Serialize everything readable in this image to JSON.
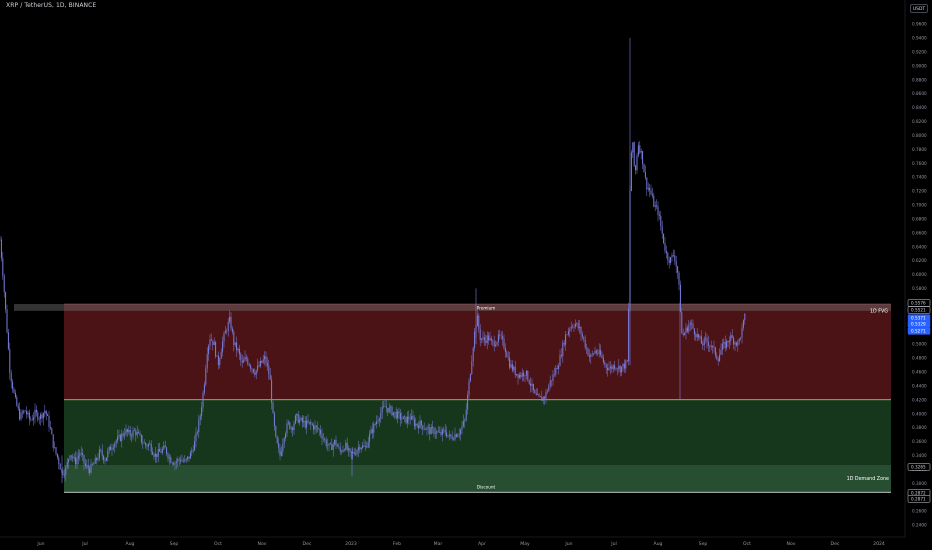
{
  "header": {
    "symbol": "XRP / TetherUS, 1D, BINANCE",
    "currency": "USDT"
  },
  "chart_data": {
    "type": "candlestick",
    "ylim": [
      0.23,
      1.0
    ],
    "y_ticks": [
      "0.9600",
      "0.9400",
      "0.9200",
      "0.9000",
      "0.8800",
      "0.8600",
      "0.8400",
      "0.8200",
      "0.8000",
      "0.7800",
      "0.7600",
      "0.7400",
      "0.7200",
      "0.7000",
      "0.6800",
      "0.6600",
      "0.6400",
      "0.6200",
      "0.6000",
      "0.5800",
      "0.5600",
      "0.5400",
      "0.5200",
      "0.5000",
      "0.4800",
      "0.4600",
      "0.4400",
      "0.4200",
      "0.4000",
      "0.3800",
      "0.3600",
      "0.3400",
      "0.3200",
      "0.3000",
      "0.2800",
      "0.2600",
      "0.2400"
    ],
    "x_ticks": [
      "Jun",
      "Jul",
      "Aug",
      "Sep",
      "Oct",
      "Nov",
      "Dec",
      "2023",
      "Feb",
      "Mar",
      "Apr",
      "May",
      "Jun",
      "Jul",
      "Aug",
      "Sep",
      "Oct",
      "Nov",
      "Dec",
      "2024"
    ],
    "price_tags": [
      {
        "value": 0.5576,
        "text": "0.5576",
        "kind": "outline"
      },
      {
        "value": 0.5521,
        "text": "0.5521",
        "kind": "outline"
      },
      {
        "value": 0.5371,
        "text": "0.5371",
        "kind": "current"
      },
      {
        "value": 0.5329,
        "text": "0.5329",
        "kind": "current"
      },
      {
        "value": 0.5271,
        "text": "0.5271",
        "kind": "current"
      },
      {
        "value": 0.3265,
        "text": "0.3265",
        "kind": "outline"
      },
      {
        "value": 0.2872,
        "text": "0.2872",
        "kind": "outline"
      },
      {
        "value": 0.2871,
        "text": "0.2871",
        "kind": "outline"
      }
    ],
    "zones": [
      {
        "label": "1D FVG",
        "low": 0.5521,
        "high": 0.5576,
        "color": "#707070"
      },
      {
        "label": "",
        "low": 0.42,
        "high": 0.5576,
        "color": "#7a1f24"
      },
      {
        "label": "",
        "low": 0.3265,
        "high": 0.42,
        "color": "#1e4a26"
      },
      {
        "label": "1D Demand Zone",
        "low": 0.2871,
        "high": 0.3265,
        "color": "#2e5c38"
      }
    ],
    "annotations": [
      "Premium",
      "Discount",
      "1D FVG",
      "1D Demand Zone"
    ],
    "series": [
      {
        "style": "candles",
        "color": "#7b7fe0",
        "path": [
          [
            0,
            0.65
          ],
          [
            3,
            0.6
          ],
          [
            6,
            0.54
          ],
          [
            10,
            0.46
          ],
          [
            15,
            0.42
          ],
          [
            20,
            0.395
          ],
          [
            25,
            0.405
          ],
          [
            30,
            0.39
          ],
          [
            35,
            0.4
          ],
          [
            40,
            0.395
          ],
          [
            45,
            0.405
          ],
          [
            50,
            0.38
          ],
          [
            54,
            0.35
          ],
          [
            58,
            0.335
          ],
          [
            62,
            0.315
          ],
          [
            66,
            0.32
          ],
          [
            70,
            0.345
          ],
          [
            75,
            0.33
          ],
          [
            80,
            0.345
          ],
          [
            85,
            0.325
          ],
          [
            90,
            0.32
          ],
          [
            95,
            0.33
          ],
          [
            100,
            0.345
          ],
          [
            105,
            0.335
          ],
          [
            110,
            0.35
          ],
          [
            115,
            0.36
          ],
          [
            120,
            0.365
          ],
          [
            125,
            0.375
          ],
          [
            130,
            0.37
          ],
          [
            135,
            0.375
          ],
          [
            140,
            0.365
          ],
          [
            145,
            0.355
          ],
          [
            150,
            0.355
          ],
          [
            155,
            0.34
          ],
          [
            160,
            0.345
          ],
          [
            165,
            0.35
          ],
          [
            170,
            0.335
          ],
          [
            175,
            0.33
          ],
          [
            180,
            0.335
          ],
          [
            185,
            0.33
          ],
          [
            190,
            0.34
          ],
          [
            195,
            0.36
          ],
          [
            200,
            0.395
          ],
          [
            204,
            0.44
          ],
          [
            207,
            0.49
          ],
          [
            210,
            0.51
          ],
          [
            214,
            0.5
          ],
          [
            218,
            0.47
          ],
          [
            222,
            0.5
          ],
          [
            226,
            0.52
          ],
          [
            230,
            0.535
          ],
          [
            234,
            0.5
          ],
          [
            238,
            0.49
          ],
          [
            242,
            0.47
          ],
          [
            246,
            0.48
          ],
          [
            250,
            0.47
          ],
          [
            255,
            0.46
          ],
          [
            260,
            0.47
          ],
          [
            265,
            0.48
          ],
          [
            270,
            0.45
          ],
          [
            273,
            0.395
          ],
          [
            276,
            0.36
          ],
          [
            280,
            0.34
          ],
          [
            284,
            0.37
          ],
          [
            288,
            0.385
          ],
          [
            292,
            0.38
          ],
          [
            296,
            0.395
          ],
          [
            300,
            0.39
          ],
          [
            305,
            0.385
          ],
          [
            310,
            0.385
          ],
          [
            315,
            0.38
          ],
          [
            320,
            0.375
          ],
          [
            325,
            0.36
          ],
          [
            330,
            0.35
          ],
          [
            335,
            0.36
          ],
          [
            340,
            0.345
          ],
          [
            345,
            0.355
          ],
          [
            350,
            0.34
          ],
          [
            355,
            0.345
          ],
          [
            360,
            0.355
          ],
          [
            365,
            0.35
          ],
          [
            370,
            0.37
          ],
          [
            375,
            0.385
          ],
          [
            380,
            0.4
          ],
          [
            385,
            0.41
          ],
          [
            390,
            0.405
          ],
          [
            395,
            0.4
          ],
          [
            400,
            0.395
          ],
          [
            405,
            0.39
          ],
          [
            410,
            0.395
          ],
          [
            415,
            0.385
          ],
          [
            420,
            0.385
          ],
          [
            425,
            0.38
          ],
          [
            430,
            0.375
          ],
          [
            435,
            0.375
          ],
          [
            440,
            0.37
          ],
          [
            445,
            0.375
          ],
          [
            450,
            0.365
          ],
          [
            455,
            0.37
          ],
          [
            460,
            0.375
          ],
          [
            465,
            0.39
          ],
          [
            468,
            0.43
          ],
          [
            471,
            0.47
          ],
          [
            474,
            0.51
          ],
          [
            477,
            0.54
          ],
          [
            480,
            0.51
          ],
          [
            484,
            0.505
          ],
          [
            488,
            0.51
          ],
          [
            492,
            0.5
          ],
          [
            496,
            0.505
          ],
          [
            500,
            0.51
          ],
          [
            505,
            0.495
          ],
          [
            510,
            0.47
          ],
          [
            515,
            0.46
          ],
          [
            520,
            0.455
          ],
          [
            525,
            0.46
          ],
          [
            530,
            0.445
          ],
          [
            535,
            0.425
          ],
          [
            540,
            0.42
          ],
          [
            545,
            0.425
          ],
          [
            550,
            0.445
          ],
          [
            555,
            0.46
          ],
          [
            560,
            0.48
          ],
          [
            565,
            0.51
          ],
          [
            570,
            0.525
          ],
          [
            575,
            0.53
          ],
          [
            580,
            0.52
          ],
          [
            585,
            0.5
          ],
          [
            590,
            0.48
          ],
          [
            595,
            0.49
          ],
          [
            600,
            0.485
          ],
          [
            605,
            0.47
          ],
          [
            610,
            0.465
          ],
          [
            615,
            0.47
          ],
          [
            620,
            0.465
          ],
          [
            625,
            0.47
          ],
          [
            628,
            0.475
          ],
          [
            630,
            0.72
          ],
          [
            632,
            0.8
          ],
          [
            635,
            0.74
          ],
          [
            638,
            0.79
          ],
          [
            642,
            0.77
          ],
          [
            646,
            0.73
          ],
          [
            650,
            0.72
          ],
          [
            654,
            0.7
          ],
          [
            658,
            0.69
          ],
          [
            662,
            0.66
          ],
          [
            666,
            0.63
          ],
          [
            670,
            0.62
          ],
          [
            674,
            0.63
          ],
          [
            678,
            0.6
          ],
          [
            680,
            0.56
          ],
          [
            682,
            0.51
          ],
          [
            686,
            0.52
          ],
          [
            690,
            0.53
          ],
          [
            694,
            0.52
          ],
          [
            698,
            0.51
          ],
          [
            702,
            0.5
          ],
          [
            706,
            0.505
          ],
          [
            710,
            0.5
          ],
          [
            714,
            0.49
          ],
          [
            718,
            0.48
          ],
          [
            722,
            0.495
          ],
          [
            726,
            0.5
          ],
          [
            730,
            0.51
          ],
          [
            734,
            0.505
          ],
          [
            738,
            0.5
          ],
          [
            742,
            0.52
          ],
          [
            745,
            0.54
          ]
        ]
      }
    ]
  }
}
